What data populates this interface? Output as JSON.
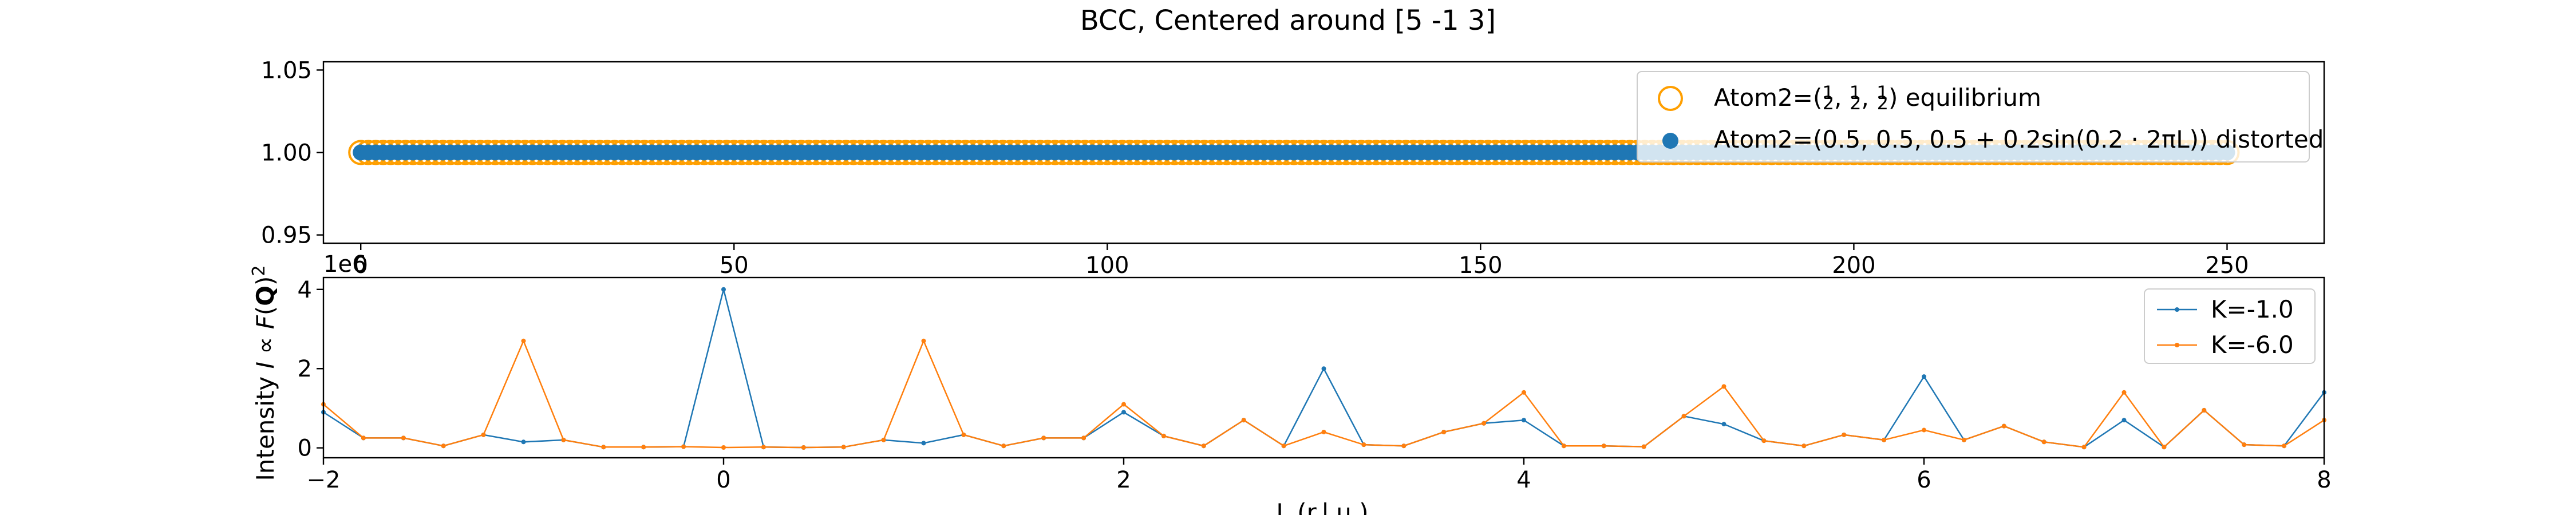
{
  "figure_title": "BCC, Centered around [5 -1 3]",
  "colors": {
    "blue": "#1f77b4",
    "orange": "#ff9f00"
  },
  "chart_data": [
    {
      "type": "scatter",
      "title": "",
      "xlabel": "",
      "ylabel": "",
      "xlim": [
        -5,
        263
      ],
      "ylim": [
        0.945,
        1.055
      ],
      "xticks": [
        0,
        50,
        100,
        150,
        200,
        250
      ],
      "yticks": [
        0.95,
        1.0,
        1.05
      ],
      "ytick_labels": [
        "0.95",
        "1.00",
        "1.05"
      ],
      "legend_position": "top-right",
      "series": [
        {
          "name": "Atom2=(1/2, 1/2, 1/2) equilibrium",
          "legend_label": {
            "prefix": "Atom2=(",
            "suffix": ") equilibrium"
          },
          "marker": "open-circle",
          "color": "#ff9f00",
          "x_range": [
            0,
            250
          ],
          "x_step": 1,
          "y": 1.0
        },
        {
          "name": "Atom2=(0.5, 0.5, 0.5+0.2sin(0.2·2πL)) distorted",
          "legend_label": "Atom2=(0.5, 0.5, 0.5 + 0.2sin(0.2 · 2πL)) distorted",
          "marker": "filled-circle",
          "color": "#1f77b4",
          "x_range": [
            0,
            250
          ],
          "x_step": 1,
          "y": 1.0
        }
      ]
    },
    {
      "type": "line",
      "title": "",
      "xlabel": "L (r.l.u.)",
      "ylabel": "Intensity I ∝ F(Q)²",
      "offset_label": "1e6",
      "xlim": [
        -2,
        8
      ],
      "ylim": [
        -0.25,
        4.3
      ],
      "xticks": [
        -2,
        0,
        2,
        4,
        6,
        8
      ],
      "yticks": [
        0,
        2,
        4
      ],
      "legend_position": "top-right",
      "x": [
        -2.0,
        -1.8,
        -1.6,
        -1.4,
        -1.2,
        -1.0,
        -0.8,
        -0.6,
        -0.4,
        -0.2,
        0.0,
        0.2,
        0.4,
        0.6,
        0.8,
        1.0,
        1.2,
        1.4,
        1.6,
        1.8,
        2.0,
        2.2,
        2.4,
        2.6,
        2.8,
        3.0,
        3.2,
        3.4,
        3.6,
        3.8,
        4.0,
        4.2,
        4.4,
        4.6,
        4.8,
        5.0,
        5.2,
        5.4,
        5.6,
        5.8,
        6.0,
        6.2,
        6.4,
        6.6,
        6.8,
        7.0,
        7.2,
        7.4,
        7.6,
        7.8,
        8.0
      ],
      "series": [
        {
          "name": "K=-1.0",
          "color": "#1f77b4",
          "values": [
            0.9,
            0.25,
            0.25,
            0.05,
            0.33,
            0.15,
            0.2,
            0.02,
            0.02,
            0.03,
            4.0,
            0.02,
            0.01,
            0.02,
            0.2,
            0.12,
            0.33,
            0.05,
            0.25,
            0.25,
            0.9,
            0.3,
            0.05,
            0.7,
            0.05,
            2.0,
            0.08,
            0.05,
            0.4,
            0.62,
            0.7,
            0.05,
            0.05,
            0.03,
            0.8,
            0.6,
            0.18,
            0.05,
            0.33,
            0.2,
            1.8,
            0.2,
            0.55,
            0.15,
            0.02,
            0.7,
            0.02,
            0.95,
            0.08,
            0.05,
            1.4
          ]
        },
        {
          "name": "K=-6.0",
          "color": "#ff7f0e",
          "values": [
            1.1,
            0.25,
            0.25,
            0.05,
            0.33,
            2.7,
            0.2,
            0.02,
            0.02,
            0.03,
            0.01,
            0.02,
            0.01,
            0.02,
            0.2,
            2.7,
            0.33,
            0.05,
            0.25,
            0.25,
            1.1,
            0.3,
            0.05,
            0.7,
            0.05,
            0.4,
            0.08,
            0.05,
            0.4,
            0.62,
            1.4,
            0.05,
            0.05,
            0.03,
            0.8,
            1.55,
            0.18,
            0.05,
            0.33,
            0.2,
            0.45,
            0.2,
            0.55,
            0.15,
            0.02,
            1.4,
            0.02,
            0.95,
            0.08,
            0.05,
            0.7
          ]
        }
      ]
    }
  ]
}
